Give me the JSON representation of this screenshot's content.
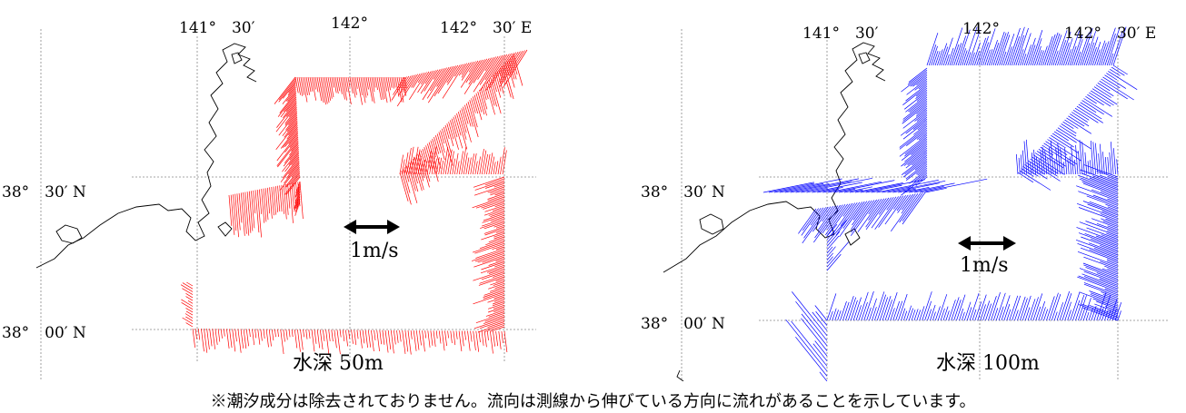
{
  "maps": [
    {
      "lon_labels": [
        "141°　30′",
        "142°",
        "142°　30′ E"
      ],
      "lat_labels": [
        "38°　30′ N",
        "38°　00′ N"
      ],
      "depth_label": "水深 50m",
      "speed_label": "1m/s",
      "vector_color": "#ff0000"
    },
    {
      "lon_labels": [
        "141°　30′",
        "142°",
        "142°　30′ E"
      ],
      "lat_labels": [
        "38°　30′ N",
        "38°　00′ N"
      ],
      "depth_label": "水深 100m",
      "speed_label": "1m/s",
      "vector_color": "#0000ff"
    }
  ],
  "note": "※潮汐成分は除去されておりません。流向は測線から伸びている方向に流れがあることを示しています。"
}
